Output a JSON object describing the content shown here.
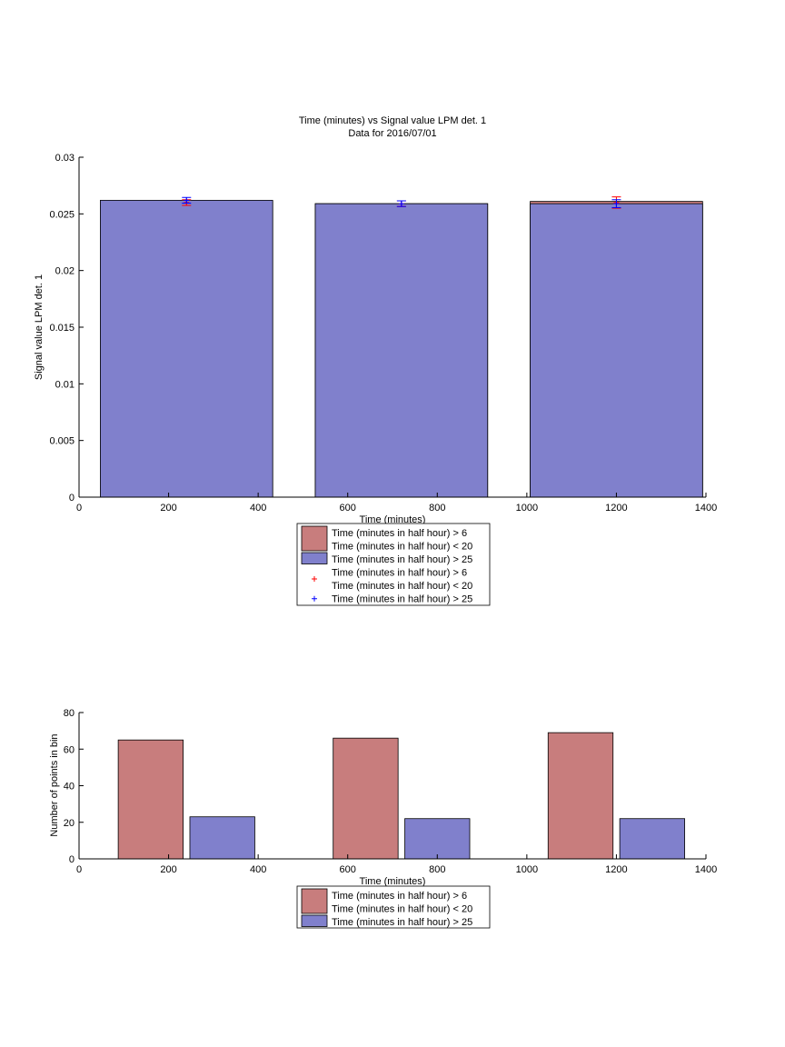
{
  "chart_data": [
    {
      "type": "bar",
      "title": "Time (minutes) vs Signal value LPM det. 1",
      "subtitle": "Data for 2016/07/01",
      "xlabel": "Time (minutes)",
      "ylabel": "Signal value LPM det. 1",
      "xlim": [
        0,
        1400
      ],
      "ylim": [
        0,
        0.03
      ],
      "xticks": [
        0,
        200,
        400,
        600,
        800,
        1000,
        1200,
        1400
      ],
      "xtick_labels": [
        "0",
        "200",
        "400",
        "600",
        "800",
        "1000",
        "1200",
        "1400"
      ],
      "yticks": [
        0,
        0.005,
        0.01,
        0.015,
        0.02,
        0.025,
        0.03
      ],
      "ytick_labels": [
        "0",
        "0.005",
        "0.01",
        "0.015",
        "0.02",
        "0.025",
        "0.03"
      ],
      "bar_width": 385,
      "overlaid": true,
      "x": [
        240,
        720,
        1200
      ],
      "series": [
        {
          "name": "Time (minutes in half hour) > 6\nTime (minutes in half hour) < 20",
          "color": "#c87d7d",
          "values": [
            0.0261,
            0.0259,
            0.0261
          ]
        },
        {
          "name": "Time (minutes in half hour) > 25",
          "color": "#8080cc",
          "values": [
            0.0262,
            0.0259,
            0.0259
          ]
        }
      ],
      "error_bars": [
        {
          "name": "Time (minutes in half hour) > 6\nTime (minutes in half hour) < 20",
          "color": "#ff0000",
          "marker": "+",
          "x": [
            240,
            720,
            1200
          ],
          "y": [
            0.026,
            0.0259,
            0.026
          ],
          "err": [
            0.00025,
            0.00025,
            0.0005
          ]
        },
        {
          "name": "Time (minutes in half hour) > 25",
          "color": "#0000ff",
          "marker": "+",
          "x": [
            240,
            720,
            1200
          ],
          "y": [
            0.0262,
            0.0259,
            0.0259
          ],
          "err": [
            0.00025,
            0.00025,
            0.00035
          ]
        }
      ],
      "legend": [
        {
          "swatch": "patch",
          "color": "#c87d7d",
          "lines": [
            "Time (minutes in half hour) > 6",
            "Time (minutes in half hour) < 20"
          ]
        },
        {
          "swatch": "patch",
          "color": "#8080cc",
          "lines": [
            "Time (minutes in half hour) > 25"
          ]
        },
        {
          "swatch": "marker",
          "color": "#ff0000",
          "lines": [
            "Time (minutes in half hour) > 6",
            "Time (minutes in half hour) < 20"
          ]
        },
        {
          "swatch": "marker",
          "color": "#0000ff",
          "lines": [
            "Time (minutes in half hour) > 25"
          ]
        }
      ],
      "legend_placement": "below"
    },
    {
      "type": "bar",
      "title": "",
      "xlabel": "Time (minutes)",
      "ylabel": "Number of points in bin",
      "xlim": [
        0,
        1400
      ],
      "ylim": [
        0,
        80
      ],
      "xticks": [
        0,
        200,
        400,
        600,
        800,
        1000,
        1200,
        1400
      ],
      "xtick_labels": [
        "0",
        "200",
        "400",
        "600",
        "800",
        "1000",
        "1200",
        "1400"
      ],
      "yticks": [
        0,
        20,
        40,
        60,
        80
      ],
      "ytick_labels": [
        "0",
        "20",
        "40",
        "60",
        "80"
      ],
      "bar_width": 145,
      "overlaid": false,
      "series": [
        {
          "name": "Time (minutes in half hour) > 6\nTime (minutes in half hour) < 20",
          "color": "#c87d7d",
          "x": [
            160,
            640,
            1120
          ],
          "values": [
            65,
            66,
            69
          ]
        },
        {
          "name": "Time (minutes in half hour) > 25",
          "color": "#8080cc",
          "x": [
            320,
            800,
            1280
          ],
          "values": [
            23,
            22,
            22
          ]
        }
      ],
      "legend": [
        {
          "swatch": "patch",
          "color": "#c87d7d",
          "lines": [
            "Time (minutes in half hour) > 6",
            "Time (minutes in half hour) < 20"
          ]
        },
        {
          "swatch": "patch",
          "color": "#8080cc",
          "lines": [
            "Time (minutes in half hour) > 25"
          ]
        }
      ],
      "legend_placement": "below"
    }
  ]
}
